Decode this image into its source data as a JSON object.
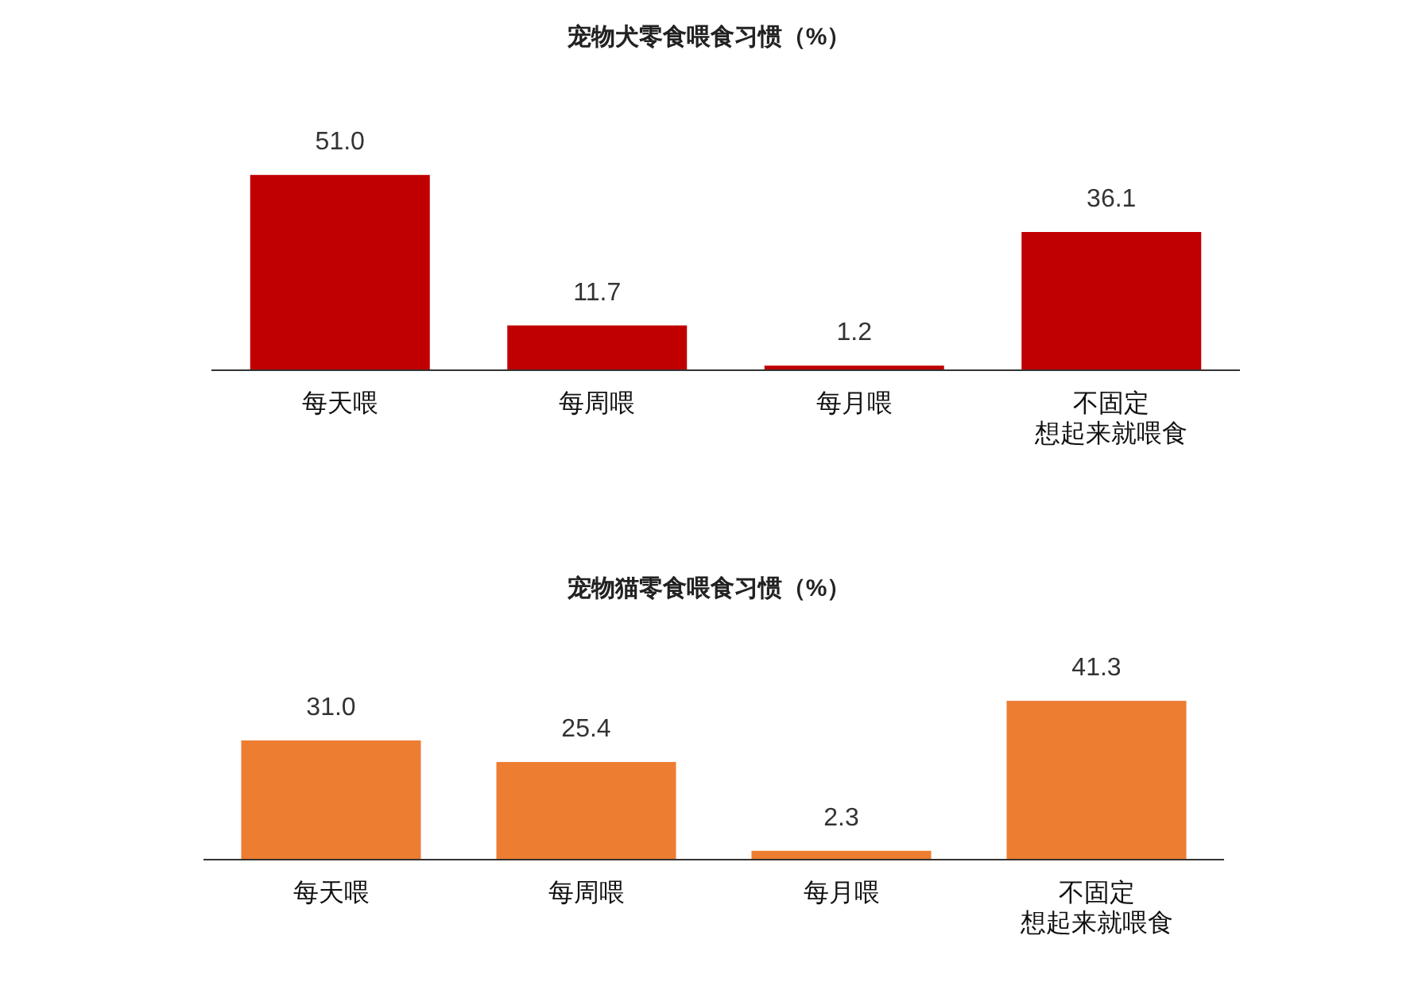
{
  "chart_data": [
    {
      "type": "bar",
      "title": "宠物犬零食喂食习惯（%）",
      "categories": [
        "每天喂",
        "每周喂",
        "每月喂",
        "不固定想起来就喂食"
      ],
      "values": [
        51.0,
        11.7,
        1.2,
        36.1
      ],
      "value_labels": [
        "51.0",
        "11.7",
        "1.2",
        "36.1"
      ],
      "color": "#c00000"
    },
    {
      "type": "bar",
      "title": "宠物猫零食喂食习惯（%）",
      "categories": [
        "每天喂",
        "每周喂",
        "每月喂",
        "不固定想起来就喂食"
      ],
      "values": [
        31.0,
        25.4,
        2.3,
        41.3
      ],
      "value_labels": [
        "31.0",
        "25.4",
        "2.3",
        "41.3"
      ],
      "color": "#ed7d31"
    }
  ]
}
